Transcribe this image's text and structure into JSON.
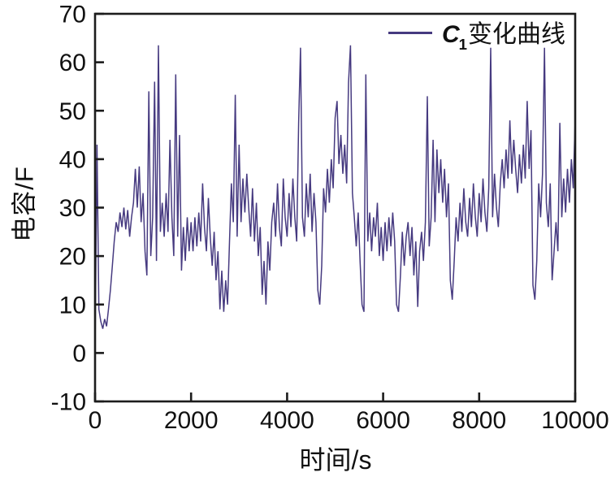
{
  "figure": {
    "background": "#ffffff"
  },
  "chart_data": {
    "type": "line",
    "title": "",
    "xlabel": "时间/s",
    "ylabel": "电容/F",
    "legend": {
      "position": "top-right",
      "var": "C",
      "subscript": "1",
      "text": "变化曲线"
    },
    "xlim": [
      0,
      10000
    ],
    "ylim": [
      -10,
      70
    ],
    "xticks": [
      0,
      2000,
      4000,
      6000,
      8000,
      10000
    ],
    "yticks": [
      70,
      60,
      50,
      40,
      30,
      20,
      10,
      0,
      -10
    ],
    "grid": false,
    "axis_color": "#1c1c1c",
    "tick_label_color": "#111111",
    "series": [
      {
        "name": "C1变化曲线",
        "color": "#463a80",
        "t_start": 0,
        "t_step": 40,
        "values": [
          0,
          43,
          9,
          6.5,
          5,
          7,
          5.5,
          9,
          13,
          18,
          23,
          27,
          25,
          29,
          26,
          30,
          25.5,
          29.5,
          24,
          28,
          31,
          38,
          30,
          38.5,
          27,
          33,
          21,
          16,
          54,
          20,
          28,
          56,
          19,
          63.5,
          25,
          31,
          24,
          33,
          25,
          44,
          28,
          20,
          57.5,
          24,
          45,
          17,
          26,
          19,
          28,
          21,
          27,
          21,
          28,
          22,
          29,
          23,
          35,
          26,
          21,
          32,
          24,
          18,
          25,
          15,
          21,
          9,
          17,
          8.5,
          15,
          10,
          23,
          35,
          27,
          53.3,
          24,
          43,
          27,
          36,
          29,
          37,
          30,
          24,
          34,
          23,
          31,
          20,
          26,
          12,
          19,
          10,
          23,
          17,
          27,
          31,
          24,
          35,
          26,
          22,
          36,
          28,
          24,
          33,
          26,
          36,
          28,
          23,
          47.5,
          63,
          28,
          24,
          35,
          28,
          37,
          25,
          33,
          27,
          13,
          10,
          18,
          34,
          29,
          38,
          31,
          40,
          34,
          48.5,
          52,
          39,
          45,
          37,
          43,
          35,
          55.8,
          63.5,
          33,
          28,
          22,
          29,
          19,
          10,
          8.5,
          57.5,
          23,
          29,
          21,
          28,
          24,
          31,
          20,
          26,
          19,
          27,
          21,
          28,
          22,
          29,
          23,
          10,
          8.5,
          16,
          25,
          18,
          24,
          27,
          20,
          26,
          16,
          23,
          9.5,
          21,
          25,
          19,
          27,
          53,
          22,
          28,
          44,
          27,
          42,
          33,
          40,
          31,
          38,
          28,
          35,
          15,
          11,
          19,
          28,
          23,
          31,
          25,
          34,
          27,
          24,
          32,
          26,
          35,
          28,
          24,
          33,
          27,
          36,
          29,
          25,
          34,
          63,
          28,
          37,
          30,
          26,
          35,
          40,
          34,
          42,
          36,
          48,
          37,
          44,
          38,
          33,
          41,
          35,
          43,
          36,
          52,
          38,
          46,
          14,
          11,
          19,
          35,
          28,
          37,
          63,
          31,
          26,
          35,
          15,
          21,
          27,
          21,
          47.5,
          28,
          36,
          29,
          38,
          31,
          40,
          34,
          48.5
        ]
      }
    ]
  }
}
